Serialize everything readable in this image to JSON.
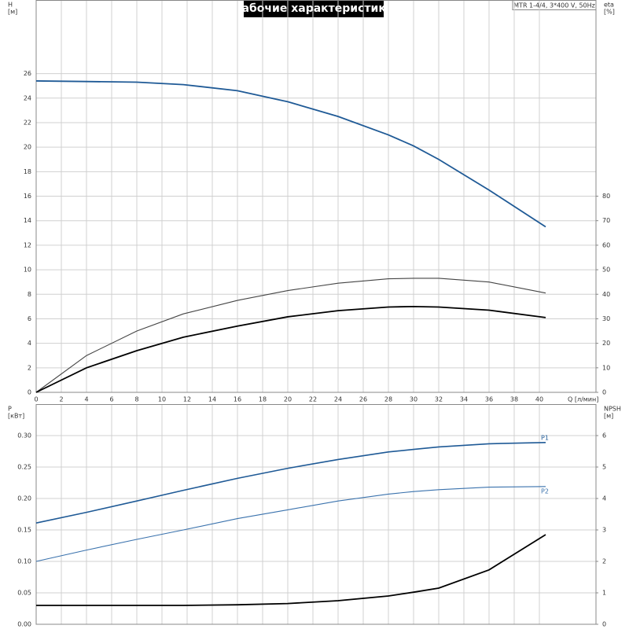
{
  "chart_data": [
    {
      "type": "line",
      "title": "Рабочие характеристики",
      "subtitle": "MTR 1-4/4, 3*400 V, 50Hz",
      "ylabel": "H",
      "ylabel_unit": "[м]",
      "y2label": "eta",
      "y2label_unit": "[%]",
      "xlabel": "Q [л/мин]",
      "x": [
        0,
        4,
        8,
        11.7,
        16,
        20,
        24,
        28,
        30,
        32,
        36,
        40.5
      ],
      "xlim": [
        0,
        44.5
      ],
      "xticks": [
        0,
        2,
        4,
        6,
        8,
        10,
        12,
        14,
        16,
        18,
        20,
        22,
        24,
        26,
        28,
        30,
        32,
        34,
        36,
        38,
        40
      ],
      "xtick_labels": true,
      "ylim": [
        0,
        32
      ],
      "yticks": [
        0,
        2,
        4,
        6,
        8,
        10,
        12,
        14,
        16,
        18,
        20,
        22,
        24,
        26
      ],
      "y2lim": [
        0,
        160
      ],
      "y2ticks": [
        0,
        10,
        20,
        30,
        40,
        50,
        60,
        70,
        80
      ],
      "grid": true,
      "series": [
        {
          "color": "#1f5a96",
          "axis": "y",
          "width": 1.8,
          "values": [
            25.4,
            25.35,
            25.3,
            25.1,
            24.6,
            23.7,
            22.5,
            21.0,
            20.1,
            19.0,
            16.5,
            13.5
          ]
        },
        {
          "color": "#444444",
          "axis": "y2",
          "width": 1.1,
          "values": [
            0,
            15,
            25,
            32,
            37.5,
            41.5,
            44.5,
            46.3,
            46.5,
            46.5,
            45,
            40.5
          ]
        },
        {
          "color": "#000000",
          "axis": "y2",
          "width": 1.8,
          "values": [
            0,
            10,
            17,
            22.5,
            27,
            30.8,
            33.3,
            34.8,
            35,
            34.8,
            33.5,
            30.5
          ]
        }
      ]
    },
    {
      "type": "line",
      "ylabel": "P",
      "ylabel_unit": "[кВт]",
      "y2label": "NPSH",
      "y2label_unit": "[м]",
      "x": [
        0,
        4,
        8,
        11.7,
        16,
        20,
        24,
        28,
        30,
        32,
        36,
        40.5
      ],
      "xlim": [
        0,
        44.5
      ],
      "xticks": [
        0,
        2,
        4,
        6,
        8,
        10,
        12,
        14,
        16,
        18,
        20,
        22,
        24,
        26,
        28,
        30,
        32,
        34,
        36,
        38,
        40
      ],
      "xtick_labels": false,
      "ylim": [
        0,
        0.35
      ],
      "yticks": [
        {
          "value": 0,
          "label": "0.00"
        },
        0.05,
        {
          "value": 0.1,
          "label": "0.10"
        },
        0.15,
        {
          "value": 0.2,
          "label": "0.20"
        },
        0.25,
        {
          "value": 0.3,
          "label": "0.30"
        }
      ],
      "y2lim": [
        0,
        7
      ],
      "y2ticks": [
        0,
        1,
        2,
        3,
        4,
        5,
        6
      ],
      "grid": true,
      "series": [
        {
          "name": "P1",
          "color": "#1f5a96",
          "axis": "y",
          "width": 1.6,
          "values": [
            0.161,
            0.178,
            0.196,
            0.213,
            0.232,
            0.248,
            0.262,
            0.274,
            0.278,
            0.282,
            0.287,
            0.289
          ]
        },
        {
          "name": "P2",
          "color": "#3a72ad",
          "axis": "y",
          "width": 1.1,
          "values": [
            0.1,
            0.118,
            0.135,
            0.15,
            0.168,
            0.182,
            0.196,
            0.207,
            0.211,
            0.214,
            0.218,
            0.219
          ]
        },
        {
          "color": "#000000",
          "axis": "y2",
          "width": 1.8,
          "values": [
            0.6,
            0.6,
            0.6,
            0.6,
            0.62,
            0.66,
            0.75,
            0.9,
            1.02,
            1.15,
            1.73,
            2.85
          ]
        }
      ]
    }
  ]
}
